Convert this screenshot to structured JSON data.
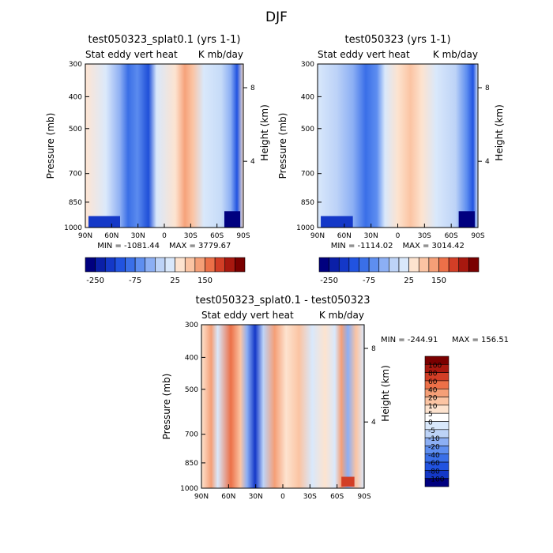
{
  "figure_title": "DJF",
  "chart_data": [
    {
      "type": "heatmap",
      "title": "test050323_splat0.1 (yrs 1-1)",
      "subtitle_left": "Stat eddy vert heat",
      "subtitle_right": "K mb/day",
      "ylabel": "Pressure (mb)",
      "y2label": "Height (km)",
      "y_ticks": [
        "300",
        "400",
        "500",
        "700",
        "850",
        "1000"
      ],
      "y2_ticks": [
        "8",
        "4"
      ],
      "x_ticks": [
        "90N",
        "60N",
        "30N",
        "0",
        "30S",
        "60S",
        "90S"
      ],
      "min_text": "MIN = -1081.44",
      "max_text": "MAX = 3779.67",
      "colorbar_labels": [
        "-250",
        "-75",
        "25",
        "150"
      ],
      "levels": [
        -250,
        -200,
        -150,
        -100,
        -75,
        -50,
        -25,
        0,
        25,
        50,
        75,
        100,
        150,
        200,
        250
      ],
      "colors": [
        "#00007f",
        "#0a1fa8",
        "#1438c8",
        "#2153e0",
        "#3a6fe8",
        "#5e8ef0",
        "#8caff4",
        "#bdd3f7",
        "#d9e8fb",
        "#fde3cf",
        "#fbc4a3",
        "#f59f77",
        "#ec7048",
        "#d23e26",
        "#a8180f",
        "#7a0000"
      ]
    },
    {
      "type": "heatmap",
      "title": "test050323 (yrs 1-1)",
      "subtitle_left": "Stat eddy vert heat",
      "subtitle_right": "K mb/day",
      "ylabel": "Pressure (mb)",
      "y2label": "Height (km)",
      "y_ticks": [
        "300",
        "400",
        "500",
        "700",
        "850",
        "1000"
      ],
      "y2_ticks": [
        "8",
        "4"
      ],
      "x_ticks": [
        "90N",
        "60N",
        "30N",
        "0",
        "30S",
        "60S",
        "90S"
      ],
      "min_text": "MIN = -1114.02",
      "max_text": "MAX = 3014.42",
      "colorbar_labels": [
        "-250",
        "-75",
        "25",
        "150"
      ],
      "levels": [
        -250,
        -200,
        -150,
        -100,
        -75,
        -50,
        -25,
        0,
        25,
        50,
        75,
        100,
        150,
        200,
        250
      ],
      "colors": [
        "#00007f",
        "#0a1fa8",
        "#1438c8",
        "#2153e0",
        "#3a6fe8",
        "#5e8ef0",
        "#8caff4",
        "#bdd3f7",
        "#d9e8fb",
        "#fde3cf",
        "#fbc4a3",
        "#f59f77",
        "#ec7048",
        "#d23e26",
        "#a8180f",
        "#7a0000"
      ]
    },
    {
      "type": "heatmap",
      "title": "test050323_splat0.1 - test050323",
      "subtitle_left": "Stat eddy vert heat",
      "subtitle_right": "K mb/day",
      "ylabel": "Pressure (mb)",
      "y2label": "Height (km)",
      "y_ticks": [
        "300",
        "400",
        "500",
        "700",
        "850",
        "1000"
      ],
      "y2_ticks": [
        "8",
        "4"
      ],
      "x_ticks": [
        "90N",
        "60N",
        "30N",
        "0",
        "30S",
        "60S",
        "90S"
      ],
      "min_text": "MIN = -244.91",
      "max_text": "MAX = 156.51",
      "colorbar_labels": [
        "100",
        "80",
        "60",
        "40",
        "20",
        "10",
        "5",
        "0",
        "-5",
        "-10",
        "-20",
        "-40",
        "-60",
        "-80",
        "-100"
      ],
      "levels": [
        100,
        80,
        60,
        40,
        20,
        10,
        5,
        0,
        -5,
        -10,
        -20,
        -40,
        -60,
        -80,
        -100
      ],
      "colors": [
        "#7a0000",
        "#a8180f",
        "#d23e26",
        "#ec7048",
        "#f59f77",
        "#fbc4a3",
        "#fde3cf",
        "#ffffff",
        "#d9e8fb",
        "#bdd3f7",
        "#8caff4",
        "#5e8ef0",
        "#3a6fe8",
        "#2153e0",
        "#1438c8",
        "#00007f"
      ]
    }
  ]
}
